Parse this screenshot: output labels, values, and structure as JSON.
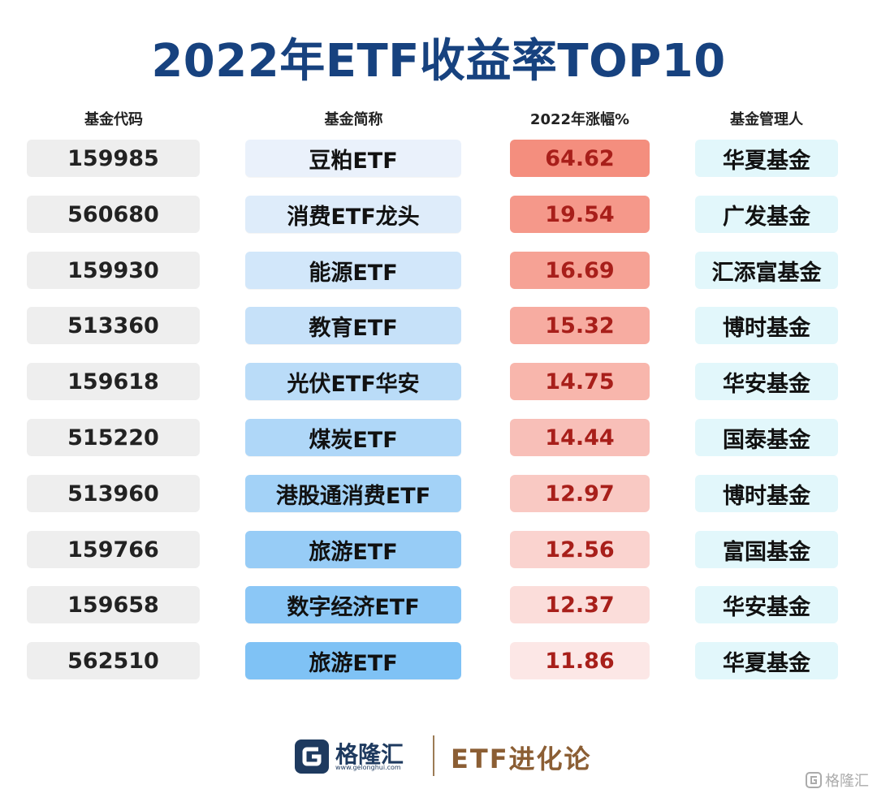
{
  "title": "2022年ETF收益率TOP10",
  "headers": {
    "code": "基金代码",
    "name": "基金简称",
    "return": "2022年涨幅%",
    "manager": "基金管理人"
  },
  "chart_data": {
    "type": "table",
    "columns": [
      "基金代码",
      "基金简称",
      "2022年涨幅%",
      "基金管理人"
    ],
    "rows": [
      {
        "code": "159985",
        "name": "豆粕ETF",
        "return": "64.62",
        "manager": "华夏基金"
      },
      {
        "code": "560680",
        "name": "消费ETF龙头",
        "return": "19.54",
        "manager": "广发基金"
      },
      {
        "code": "159930",
        "name": "能源ETF",
        "return": "16.69",
        "manager": "汇添富基金"
      },
      {
        "code": "513360",
        "name": "教育ETF",
        "return": "15.32",
        "manager": "博时基金"
      },
      {
        "code": "159618",
        "name": "光伏ETF华安",
        "return": "14.75",
        "manager": "华安基金"
      },
      {
        "code": "515220",
        "name": "煤炭ETF",
        "return": "14.44",
        "manager": "国泰基金"
      },
      {
        "code": "513960",
        "name": "港股通消费ETF",
        "return": "12.97",
        "manager": "博时基金"
      },
      {
        "code": "159766",
        "name": "旅游ETF",
        "return": "12.56",
        "manager": "富国基金"
      },
      {
        "code": "159658",
        "name": "数字经济ETF",
        "return": "12.37",
        "manager": "华安基金"
      },
      {
        "code": "562510",
        "name": "旅游ETF",
        "return": "11.86",
        "manager": "华夏基金"
      }
    ]
  },
  "colors": {
    "title": "#17427f",
    "return_text": "#a81f1a",
    "name_gradient": [
      "#eaf1fb",
      "#7fc2f5"
    ],
    "return_gradient": [
      "#f48e7e",
      "#fce7e6"
    ]
  },
  "footer": {
    "logo_text": "格隆汇",
    "logo_url": "www.gelonghui.com",
    "brand": "ETF进化论"
  },
  "watermark": "格隆汇"
}
